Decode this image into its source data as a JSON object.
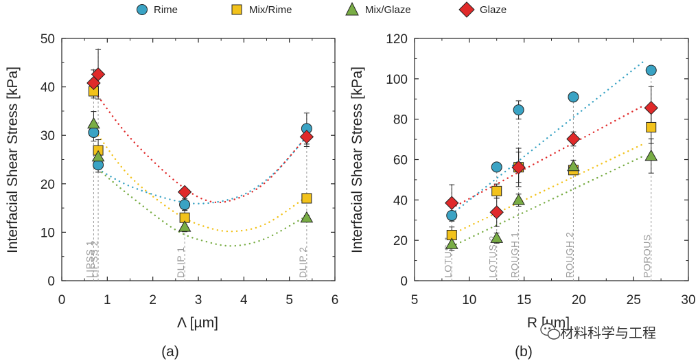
{
  "colors": {
    "rime": "#3aa3c4",
    "mix_rime": "#f2c21b",
    "mix_glaze": "#79ad45",
    "glaze": "#e02a2a",
    "axis": "#222222",
    "annotation": "#9a9a9a"
  },
  "legend": [
    {
      "key": "rime",
      "label": "Rime",
      "marker": "circle"
    },
    {
      "key": "mix_rime",
      "label": "Mix/Rime",
      "marker": "square"
    },
    {
      "key": "mix_glaze",
      "label": "Mix/Glaze",
      "marker": "triangle"
    },
    {
      "key": "glaze",
      "label": "Glaze",
      "marker": "diamond"
    }
  ],
  "watermark": "材料科学与工程",
  "chart_data": [
    {
      "type": "scatter",
      "panel_label": "(a)",
      "xlabel": "Λ [µm]",
      "ylabel": "Interfacial Shear Stress [kPa]",
      "xlim": [
        0,
        6
      ],
      "ylim": [
        0,
        50
      ],
      "xticks": [
        0,
        1,
        2,
        3,
        4,
        5,
        6
      ],
      "yticks": [
        0,
        10,
        20,
        30,
        40,
        50
      ],
      "surfaces": [
        {
          "label": "LIPSS 1",
          "x": 0.7
        },
        {
          "label": "LIPSS 2",
          "x": 0.8
        },
        {
          "label": "DLIP 1",
          "x": 2.7
        },
        {
          "label": "DLIP 2",
          "x": 5.38
        }
      ],
      "series": [
        {
          "name": "Rime",
          "key": "rime",
          "marker": "circle",
          "x": [
            0.7,
            0.8,
            2.7,
            5.38
          ],
          "y": [
            30.6,
            23.9,
            15.7,
            31.4
          ],
          "err": [
            1.8,
            1.5,
            1.2,
            3.2
          ],
          "fit": [
            [
              0.8,
              23
            ],
            [
              1.5,
              19.5
            ],
            [
              2.5,
              16.5
            ],
            [
              3.2,
              16.0
            ],
            [
              4.0,
              17.8
            ],
            [
              4.7,
              22.5
            ],
            [
              5.4,
              30.0
            ]
          ]
        },
        {
          "name": "Mix/Rime",
          "key": "mix_rime",
          "marker": "square",
          "x": [
            0.7,
            0.8,
            2.7,
            5.38
          ],
          "y": [
            39.1,
            26.9,
            13.0,
            17.0
          ],
          "err": [
            1.4,
            2.2,
            1.5,
            0.5
          ],
          "fit": [
            [
              0.8,
              30
            ],
            [
              1.5,
              21.5
            ],
            [
              2.5,
              14.0
            ],
            [
              3.2,
              11.0
            ],
            [
              3.8,
              10.2
            ],
            [
              4.5,
              11.8
            ],
            [
              5.4,
              17.5
            ]
          ]
        },
        {
          "name": "Mix/Glaze",
          "key": "mix_glaze",
          "marker": "triangle",
          "x": [
            0.7,
            0.8,
            2.7,
            5.38
          ],
          "y": [
            32.4,
            25.6,
            11.1,
            13.0
          ],
          "err": [
            2.5,
            2.0,
            1.0,
            0.5
          ],
          "fit": [
            [
              0.8,
              23
            ],
            [
              1.5,
              17.5
            ],
            [
              2.5,
              10.5
            ],
            [
              3.2,
              8.0
            ],
            [
              3.8,
              7.2
            ],
            [
              4.5,
              8.8
            ],
            [
              5.4,
              13.5
            ]
          ]
        },
        {
          "name": "Glaze",
          "key": "glaze",
          "marker": "diamond",
          "x": [
            0.7,
            0.8,
            2.7,
            5.38
          ],
          "y": [
            40.8,
            42.6,
            18.3,
            29.7
          ],
          "err": [
            2.7,
            5.1,
            0.7,
            2.0
          ],
          "fit": [
            [
              0.8,
              38
            ],
            [
              1.5,
              29.5
            ],
            [
              2.5,
              20.5
            ],
            [
              3.2,
              16.5
            ],
            [
              3.8,
              16.8
            ],
            [
              4.5,
              20.5
            ],
            [
              5.4,
              30.0
            ]
          ]
        }
      ]
    },
    {
      "type": "scatter",
      "panel_label": "(b)",
      "xlabel": "R [µm]",
      "ylabel": "Interfacial Shear Stress [kPa]",
      "xlim": [
        5,
        30
      ],
      "ylim": [
        0,
        120
      ],
      "xticks": [
        5,
        10,
        15,
        20,
        25,
        30
      ],
      "yticks": [
        0,
        20,
        40,
        60,
        80,
        100,
        120
      ],
      "surfaces": [
        {
          "label": "LOTUS 1",
          "x": 8.4
        },
        {
          "label": "LOTUS 2",
          "x": 12.5
        },
        {
          "label": "ROUGH 1",
          "x": 14.5
        },
        {
          "label": "ROUGH 2",
          "x": 19.5
        },
        {
          "label": "POROUS",
          "x": 26.6
        }
      ],
      "series": [
        {
          "name": "Rime",
          "key": "rime",
          "marker": "circle",
          "x": [
            8.4,
            12.5,
            14.5,
            19.5,
            26.6
          ],
          "y": [
            32.3,
            56.3,
            84.6,
            91.0,
            104.2
          ],
          "err": [
            2.0,
            1.5,
            4.5,
            1.5,
            2.0
          ],
          "fit": [
            [
              8.4,
              33
            ],
            [
              26,
              109
            ]
          ]
        },
        {
          "name": "Mix/Rime",
          "key": "mix_rime",
          "marker": "square",
          "x": [
            8.4,
            12.5,
            14.5,
            19.5,
            26.6
          ],
          "y": [
            22.6,
            44.4,
            56.2,
            54.8,
            76.0
          ],
          "err": [
            4.0,
            3.5,
            7.5,
            1.5,
            8.0
          ],
          "fit": [
            [
              8.4,
              23
            ],
            [
              26,
              68
            ]
          ]
        },
        {
          "name": "Mix/Glaze",
          "key": "mix_glaze",
          "marker": "triangle",
          "x": [
            8.4,
            12.5,
            14.5,
            19.5,
            26.6
          ],
          "y": [
            18.1,
            21.1,
            39.9,
            56.7,
            61.8
          ],
          "err": [
            3.0,
            2.5,
            3.0,
            3.0,
            8.5
          ],
          "fit": [
            [
              8.4,
              17
            ],
            [
              26,
              62
            ]
          ]
        },
        {
          "name": "Glaze",
          "key": "glaze",
          "marker": "diamond",
          "x": [
            8.4,
            12.5,
            14.5,
            19.5,
            26.6
          ],
          "y": [
            38.5,
            33.9,
            56.1,
            70.2,
            85.6
          ],
          "err": [
            9.0,
            7.0,
            9.5,
            3.5,
            10.5
          ],
          "fit": [
            [
              8.4,
              36
            ],
            [
              26,
              87
            ]
          ]
        }
      ]
    }
  ]
}
